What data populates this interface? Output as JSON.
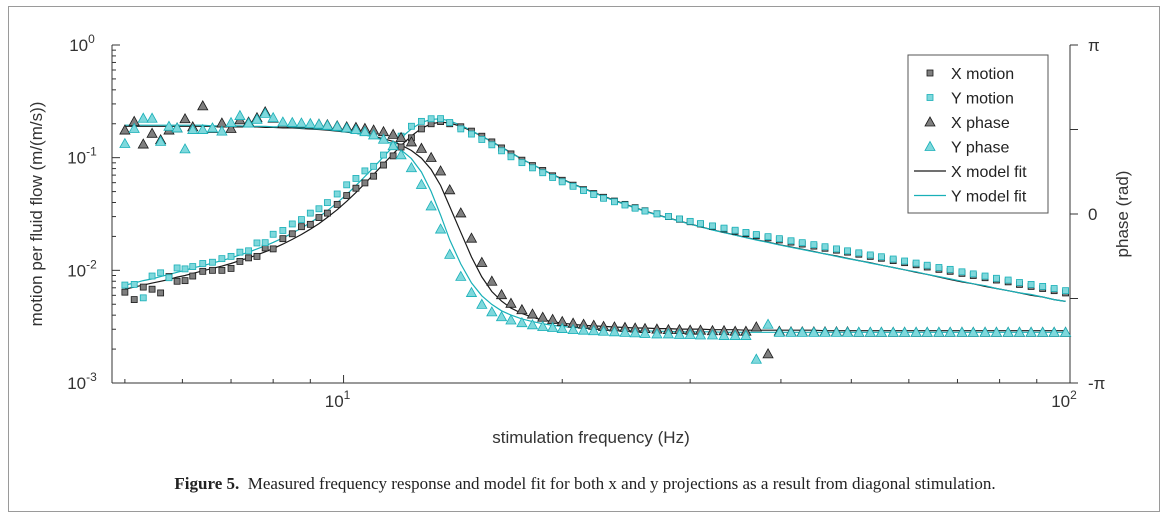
{
  "colors": {
    "x": "#1a1a1a",
    "xfill": "#7f7f7f",
    "y": "#19b0b8",
    "yfill": "#7fd8dc",
    "axis": "#333333"
  },
  "caption": {
    "label": "Figure 5.",
    "text": "Measured frequency response and model fit for both x and y projections as a result from diagonal stimulation."
  },
  "chart_data": {
    "type": "scatter",
    "title": "",
    "xlabel": "stimulation frequency (Hz)",
    "ylabel": "motion per fluid flow (m/(m/s))",
    "y2label": "phase (rad)",
    "xscale": "log",
    "yscale": "log",
    "xlim": [
      4.8,
      100
    ],
    "ylim": [
      0.001,
      1
    ],
    "y2lim": [
      -3.14159,
      3.14159
    ],
    "x_ticks": [
      {
        "value": 10,
        "base": "10",
        "exp": "1"
      },
      {
        "value": 100,
        "base": "10",
        "exp": "2"
      }
    ],
    "y_ticks": [
      {
        "value": 0.001,
        "base": "10",
        "exp": "-3"
      },
      {
        "value": 0.01,
        "base": "10",
        "exp": "-2"
      },
      {
        "value": 0.1,
        "base": "10",
        "exp": "-1"
      },
      {
        "value": 1,
        "base": "10",
        "exp": "0"
      }
    ],
    "y2_ticks": [
      {
        "value": -3.14159,
        "label": "-π"
      },
      {
        "value": 0,
        "label": "0"
      },
      {
        "value": 3.14159,
        "label": "π"
      }
    ],
    "legend_position": "top-right",
    "legend": [
      "X motion",
      "Y motion",
      "X phase",
      "Y phase",
      "X model fit",
      "Y model fit"
    ],
    "x": [
      5.0,
      5.15,
      5.3,
      5.45,
      5.6,
      5.75,
      5.9,
      6.05,
      6.2,
      6.4,
      6.6,
      6.8,
      7.0,
      7.2,
      7.4,
      7.6,
      7.8,
      8.0,
      8.25,
      8.5,
      8.75,
      9.0,
      9.25,
      9.5,
      9.8,
      10.1,
      10.4,
      10.7,
      11.0,
      11.35,
      11.7,
      12.0,
      12.4,
      12.8,
      13.2,
      13.6,
      14.0,
      14.5,
      15.0,
      15.5,
      16.0,
      16.5,
      17.0,
      17.6,
      18.2,
      18.8,
      19.4,
      20.0,
      20.7,
      21.4,
      22.1,
      22.8,
      23.6,
      24.4,
      25.2,
      26.0,
      27.0,
      28.0,
      29.0,
      30.0,
      31.0,
      32.2,
      33.4,
      34.6,
      35.8,
      37.0,
      38.4,
      39.8,
      41.3,
      42.8,
      44.4,
      46.0,
      47.7,
      49.4,
      51.2,
      53.1,
      55.0,
      57.1,
      59.2,
      61.4,
      63.6,
      66.0,
      68.4,
      71.0,
      73.6,
      76.4,
      79.2,
      82.2,
      85.2,
      88.4,
      91.7,
      95.1,
      98.6
    ],
    "series": [
      {
        "name": "X motion",
        "kind": "markers",
        "marker": "square",
        "axis": "left",
        "values": [
          0.0064,
          0.0055,
          0.0071,
          0.0068,
          0.0063,
          0.0088,
          0.008,
          0.0081,
          0.0089,
          0.0098,
          0.01,
          0.01,
          0.0104,
          0.012,
          0.0129,
          0.0133,
          0.0158,
          0.0155,
          0.0191,
          0.0211,
          0.0244,
          0.0256,
          0.0294,
          0.0322,
          0.0385,
          0.0461,
          0.0536,
          0.0597,
          0.0685,
          0.086,
          0.1037,
          0.1243,
          0.15,
          0.18,
          0.2,
          0.209,
          0.2,
          0.188,
          0.172,
          0.155,
          0.138,
          0.122,
          0.108,
          0.095,
          0.085,
          0.077,
          0.069,
          0.063,
          0.057,
          0.052,
          0.048,
          0.0445,
          0.0412,
          0.0385,
          0.036,
          0.0338,
          0.0318,
          0.03,
          0.0284,
          0.027,
          0.0258,
          0.0245,
          0.0233,
          0.0222,
          0.0212,
          0.0203,
          0.0194,
          0.0186,
          0.0178,
          0.0171,
          0.0164,
          0.0157,
          0.0151,
          0.0145,
          0.0139,
          0.0133,
          0.0128,
          0.0122,
          0.0117,
          0.0112,
          0.0107,
          0.0102,
          0.0098,
          0.0094,
          0.009,
          0.0086,
          0.0082,
          0.0079,
          0.0075,
          0.0072,
          0.0069,
          0.0066,
          0.0063
        ]
      },
      {
        "name": "Y motion",
        "kind": "markers",
        "marker": "square",
        "axis": "left",
        "values": [
          0.0074,
          0.0075,
          0.0057,
          0.0089,
          0.0095,
          0.0086,
          0.0105,
          0.0103,
          0.0108,
          0.0115,
          0.0118,
          0.0127,
          0.0133,
          0.0145,
          0.0149,
          0.0175,
          0.0176,
          0.0209,
          0.0226,
          0.0258,
          0.0282,
          0.0322,
          0.0352,
          0.0399,
          0.0476,
          0.0574,
          0.0654,
          0.0763,
          0.0838,
          0.1055,
          0.128,
          0.1552,
          0.19,
          0.21,
          0.2216,
          0.222,
          0.2052,
          0.18,
          0.162,
          0.145,
          0.13,
          0.115,
          0.1018,
          0.0903,
          0.0812,
          0.0735,
          0.0667,
          0.061,
          0.0557,
          0.051,
          0.047,
          0.0436,
          0.0406,
          0.038,
          0.0356,
          0.0336,
          0.0317,
          0.0301,
          0.0286,
          0.0272,
          0.026,
          0.0248,
          0.0237,
          0.0227,
          0.0217,
          0.0208,
          0.0199,
          0.0191,
          0.0183,
          0.0176,
          0.0169,
          0.0162,
          0.0155,
          0.0149,
          0.0143,
          0.0137,
          0.0132,
          0.0126,
          0.0121,
          0.0116,
          0.0111,
          0.0106,
          0.0102,
          0.0097,
          0.0093,
          0.0089,
          0.0085,
          0.0082,
          0.0078,
          0.0075,
          0.0072,
          0.0069,
          0.0066
        ]
      },
      {
        "name": "X phase",
        "kind": "markers",
        "marker": "triangle",
        "axis": "right",
        "values": [
          1.56,
          1.72,
          1.3,
          1.5,
          1.38,
          1.56,
          1.6,
          1.77,
          1.62,
          2.01,
          1.59,
          1.69,
          1.59,
          1.75,
          1.71,
          1.79,
          1.9,
          1.78,
          1.68,
          1.69,
          1.68,
          1.67,
          1.67,
          1.66,
          1.64,
          1.62,
          1.61,
          1.59,
          1.56,
          1.53,
          1.48,
          1.42,
          1.34,
          1.22,
          1.05,
          0.8,
          0.45,
          0.02,
          -0.45,
          -0.9,
          -1.25,
          -1.5,
          -1.66,
          -1.78,
          -1.86,
          -1.92,
          -1.96,
          -2.0,
          -2.03,
          -2.05,
          -2.07,
          -2.09,
          -2.1,
          -2.11,
          -2.12,
          -2.13,
          -2.14,
          -2.15,
          -2.15,
          -2.16,
          -2.16,
          -2.17,
          -2.17,
          -2.18,
          -2.18,
          -2.1,
          -2.6,
          -2.18,
          -2.19,
          -2.19,
          -2.19,
          -2.19,
          -2.19,
          -2.19,
          -2.2,
          -2.2,
          -2.2,
          -2.2,
          -2.2,
          -2.2,
          -2.2,
          -2.2,
          -2.2,
          -2.2,
          -2.2,
          -2.2,
          -2.2,
          -2.2,
          -2.2,
          -2.2,
          -2.2,
          -2.2,
          -2.2
        ]
      },
      {
        "name": "Y phase",
        "kind": "markers",
        "marker": "triangle",
        "axis": "right",
        "values": [
          1.31,
          1.59,
          1.78,
          1.78,
          1.35,
          1.63,
          1.6,
          1.21,
          1.57,
          1.57,
          1.6,
          1.54,
          1.7,
          1.83,
          1.69,
          1.76,
          1.87,
          1.79,
          1.71,
          1.7,
          1.69,
          1.68,
          1.67,
          1.65,
          1.63,
          1.6,
          1.57,
          1.53,
          1.47,
          1.39,
          1.27,
          1.1,
          0.86,
          0.55,
          0.15,
          -0.28,
          -0.75,
          -1.16,
          -1.46,
          -1.68,
          -1.82,
          -1.91,
          -1.97,
          -2.02,
          -2.06,
          -2.09,
          -2.11,
          -2.13,
          -2.15,
          -2.16,
          -2.17,
          -2.18,
          -2.19,
          -2.2,
          -2.21,
          -2.22,
          -2.23,
          -2.23,
          -2.24,
          -2.24,
          -2.25,
          -2.25,
          -2.26,
          -2.26,
          -2.26,
          -2.7,
          -2.05,
          -2.2,
          -2.2,
          -2.2,
          -2.2,
          -2.2,
          -2.2,
          -2.2,
          -2.2,
          -2.2,
          -2.2,
          -2.2,
          -2.2,
          -2.2,
          -2.2,
          -2.2,
          -2.2,
          -2.2,
          -2.2,
          -2.2,
          -2.2,
          -2.2,
          -2.2,
          -2.2,
          -2.2,
          -2.2,
          -2.2
        ]
      },
      {
        "name": "X model fit",
        "kind": "line",
        "axis": "left",
        "values": [
          0.0068,
          0.0071,
          0.0074,
          0.0077,
          0.008,
          0.0083,
          0.0087,
          0.009,
          0.0094,
          0.0099,
          0.0104,
          0.0109,
          0.0115,
          0.0122,
          0.0129,
          0.0137,
          0.0146,
          0.0156,
          0.0171,
          0.0188,
          0.0208,
          0.0232,
          0.026,
          0.0295,
          0.0345,
          0.041,
          0.049,
          0.059,
          0.071,
          0.088,
          0.108,
          0.128,
          0.156,
          0.182,
          0.2,
          0.207,
          0.203,
          0.19,
          0.172,
          0.155,
          0.139,
          0.124,
          0.111,
          0.097,
          0.087,
          0.078,
          0.071,
          0.0645,
          0.0585,
          0.0535,
          0.0492,
          0.0455,
          0.0418,
          0.0387,
          0.036,
          0.0337,
          0.0312,
          0.0292,
          0.0274,
          0.0258,
          0.0244,
          0.0229,
          0.0217,
          0.0206,
          0.0196,
          0.0187,
          0.0178,
          0.0169,
          0.0161,
          0.0154,
          0.0147,
          0.014,
          0.0134,
          0.0128,
          0.0122,
          0.0117,
          0.0111,
          0.0106,
          0.0101,
          0.0096,
          0.0092,
          0.0087,
          0.0083,
          0.0079,
          0.0076,
          0.0072,
          0.0069,
          0.0066,
          0.0063,
          0.006,
          0.0058,
          0.0055,
          0.0053
        ]
      },
      {
        "name": "Y model fit",
        "kind": "line",
        "axis": "left",
        "values": [
          0.0074,
          0.0077,
          0.0081,
          0.0084,
          0.0088,
          0.0092,
          0.0096,
          0.01,
          0.0105,
          0.011,
          0.0116,
          0.0122,
          0.0129,
          0.0137,
          0.0145,
          0.0155,
          0.0165,
          0.0177,
          0.0194,
          0.0214,
          0.0237,
          0.0265,
          0.0298,
          0.0338,
          0.0398,
          0.0472,
          0.0565,
          0.068,
          0.082,
          0.102,
          0.125,
          0.15,
          0.18,
          0.205,
          0.219,
          0.221,
          0.212,
          0.194,
          0.174,
          0.155,
          0.138,
          0.123,
          0.11,
          0.097,
          0.087,
          0.078,
          0.0705,
          0.064,
          0.058,
          0.053,
          0.0488,
          0.045,
          0.0414,
          0.0384,
          0.0357,
          0.0334,
          0.031,
          0.029,
          0.0273,
          0.0257,
          0.0243,
          0.0228,
          0.0216,
          0.0205,
          0.0195,
          0.0186,
          0.0177,
          0.0168,
          0.016,
          0.0153,
          0.0146,
          0.014,
          0.0133,
          0.0127,
          0.0122,
          0.0116,
          0.0111,
          0.0106,
          0.0101,
          0.0097,
          0.0092,
          0.0088,
          0.0084,
          0.008,
          0.0076,
          0.0073,
          0.0069,
          0.0066,
          0.0063,
          0.0061,
          0.0058,
          0.0055,
          0.0053
        ]
      },
      {
        "name": "X phase fit",
        "kind": "line",
        "axis": "right",
        "values": [
          1.63,
          1.63,
          1.63,
          1.63,
          1.63,
          1.63,
          1.63,
          1.63,
          1.63,
          1.63,
          1.63,
          1.63,
          1.62,
          1.62,
          1.62,
          1.62,
          1.61,
          1.61,
          1.6,
          1.6,
          1.59,
          1.58,
          1.57,
          1.56,
          1.54,
          1.52,
          1.5,
          1.47,
          1.44,
          1.4,
          1.35,
          1.28,
          1.18,
          1.04,
          0.83,
          0.53,
          0.14,
          -0.34,
          -0.8,
          -1.17,
          -1.44,
          -1.62,
          -1.75,
          -1.85,
          -1.92,
          -1.97,
          -2.0,
          -2.03,
          -2.05,
          -2.07,
          -2.08,
          -2.09,
          -2.1,
          -2.11,
          -2.12,
          -2.12,
          -2.13,
          -2.13,
          -2.14,
          -2.14,
          -2.14,
          -2.15,
          -2.15,
          -2.15,
          -2.16,
          -2.16,
          -2.16,
          -2.16,
          -2.16,
          -2.16,
          -2.16,
          -2.17,
          -2.17,
          -2.17,
          -2.17,
          -2.17,
          -2.17,
          -2.17,
          -2.17,
          -2.17,
          -2.17,
          -2.17,
          -2.17,
          -2.17,
          -2.17,
          -2.17,
          -2.17,
          -2.17,
          -2.17,
          -2.17,
          -2.17,
          -2.17,
          -2.17
        ]
      },
      {
        "name": "Y phase fit",
        "kind": "line",
        "axis": "right",
        "values": [
          1.65,
          1.65,
          1.65,
          1.65,
          1.65,
          1.65,
          1.65,
          1.65,
          1.65,
          1.65,
          1.64,
          1.64,
          1.64,
          1.64,
          1.63,
          1.63,
          1.63,
          1.62,
          1.62,
          1.61,
          1.6,
          1.59,
          1.58,
          1.57,
          1.55,
          1.53,
          1.5,
          1.47,
          1.43,
          1.37,
          1.3,
          1.19,
          1.03,
          0.78,
          0.42,
          -0.02,
          -0.48,
          -0.93,
          -1.28,
          -1.52,
          -1.68,
          -1.8,
          -1.88,
          -1.95,
          -2.0,
          -2.04,
          -2.07,
          -2.09,
          -2.11,
          -2.12,
          -2.14,
          -2.15,
          -2.16,
          -2.16,
          -2.17,
          -2.17,
          -2.18,
          -2.18,
          -2.19,
          -2.19,
          -2.19,
          -2.19,
          -2.2,
          -2.2,
          -2.2,
          -2.2,
          -2.2,
          -2.2,
          -2.2,
          -2.2,
          -2.2,
          -2.2,
          -2.2,
          -2.2,
          -2.2,
          -2.2,
          -2.2,
          -2.2,
          -2.2,
          -2.2,
          -2.2,
          -2.2,
          -2.2,
          -2.2,
          -2.2,
          -2.2,
          -2.2,
          -2.2,
          -2.2,
          -2.2,
          -2.2,
          -2.2,
          -2.2
        ]
      }
    ]
  }
}
